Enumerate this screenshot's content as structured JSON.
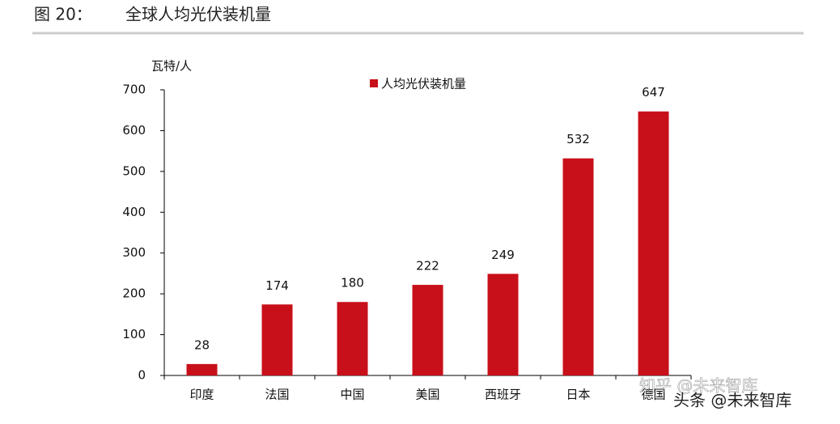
{
  "chart_data": {
    "type": "bar",
    "figure_label": "图 20：",
    "title": "全球人均光伏装机量",
    "y_label": "瓦特/人",
    "categories": [
      "印度",
      "法国",
      "中国",
      "美国",
      "西班牙",
      "日本",
      "德国"
    ],
    "series": [
      {
        "name": "人均光伏装机量",
        "color": "#c8101a",
        "values": [
          28,
          174,
          180,
          222,
          249,
          532,
          647
        ]
      }
    ],
    "ylim": [
      0,
      700
    ],
    "yticks": [
      0,
      100,
      200,
      300,
      400,
      500,
      600,
      700
    ],
    "data_labels": true,
    "legend": "top"
  },
  "watermarks": [
    "知乎 @未来智库",
    "头条 @未来智库"
  ]
}
